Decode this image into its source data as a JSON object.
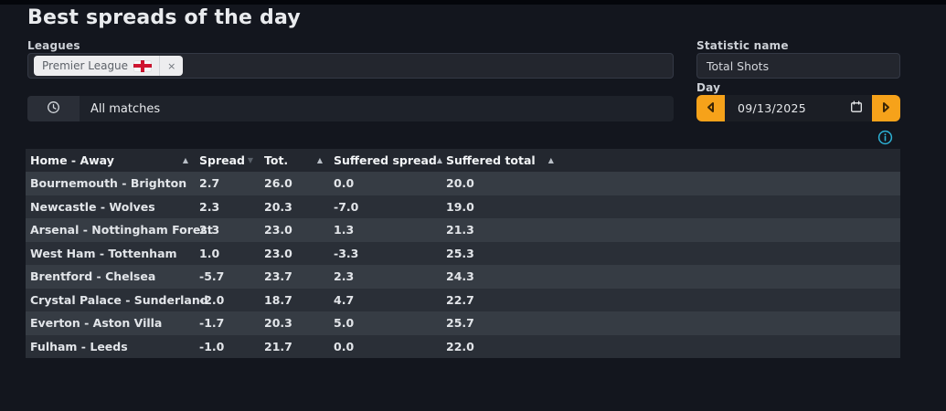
{
  "page": {
    "title": "Best spreads of the day"
  },
  "filters": {
    "leagues": {
      "label": "Leagues",
      "selected_chip": {
        "name": "Premier League",
        "flag": "england-flag",
        "remove_label": "×"
      }
    },
    "time_filter": {
      "icon": "clock-icon",
      "value": "All matches"
    },
    "statistic": {
      "label": "Statistic name",
      "value": "Total Shots"
    },
    "day": {
      "label": "Day",
      "value": "09/13/2025",
      "icons": [
        "prev-arrow-icon",
        "calendar-icon",
        "next-arrow-icon"
      ]
    }
  },
  "info": {
    "icon": "info-icon"
  },
  "colors": {
    "accent_orange": "#f6a21a",
    "info_cyan": "#2db0d4",
    "flag_red": "#cf1530",
    "row_odd": "#363c44",
    "row_even": "#2a2f37",
    "header_bg": "#23272f",
    "page_bg": "#13161e"
  },
  "table": {
    "columns": [
      {
        "key": "match",
        "label": "Home - Away",
        "sort": "asc"
      },
      {
        "key": "spread",
        "label": "Spread",
        "sort": "desc"
      },
      {
        "key": "tot",
        "label": "Tot.",
        "sort": "asc"
      },
      {
        "key": "suffered_spread",
        "label": "Suffered spread",
        "sort": "asc"
      },
      {
        "key": "suffered_total",
        "label": "Suffered total",
        "sort": "asc"
      }
    ],
    "rows": [
      [
        "Bournemouth - Brighton",
        "2.7",
        "26.0",
        "0.0",
        "20.0"
      ],
      [
        "Newcastle - Wolves",
        "2.3",
        "20.3",
        "-7.0",
        "19.0"
      ],
      [
        "Arsenal - Nottingham Forest",
        "2.3",
        "23.0",
        "1.3",
        "21.3"
      ],
      [
        "West Ham - Tottenham",
        "1.0",
        "23.0",
        "-3.3",
        "25.3"
      ],
      [
        "Brentford - Chelsea",
        "-5.7",
        "23.7",
        "2.3",
        "24.3"
      ],
      [
        "Crystal Palace - Sunderland",
        "-2.0",
        "18.7",
        "4.7",
        "22.7"
      ],
      [
        "Everton - Aston Villa",
        "-1.7",
        "20.3",
        "5.0",
        "25.7"
      ],
      [
        "Fulham - Leeds",
        "-1.0",
        "21.7",
        "0.0",
        "22.0"
      ]
    ],
    "sort_glyphs": {
      "asc": "▲",
      "desc": "▼"
    }
  }
}
